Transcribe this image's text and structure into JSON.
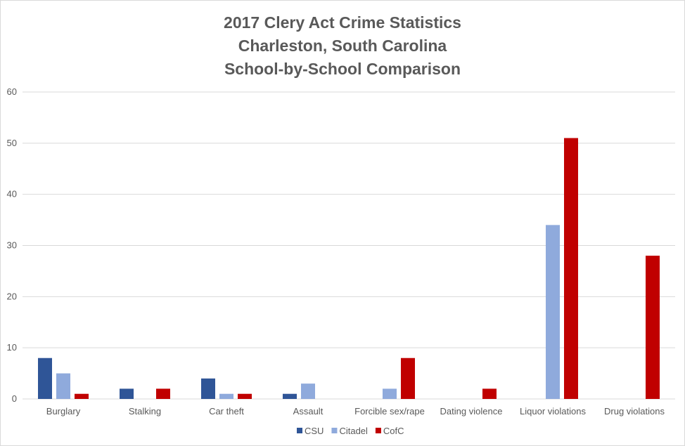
{
  "chart_data": {
    "type": "bar",
    "title": [
      "2017 Clery Act Crime Statistics",
      "Charleston, South Carolina",
      "School-by-School Comparison"
    ],
    "xlabel": "",
    "ylabel": "",
    "ylim": [
      0,
      60
    ],
    "yticks": [
      "0",
      "10",
      "20",
      "30",
      "40",
      "50",
      "60"
    ],
    "grid": true,
    "legend": "bottom",
    "categories": [
      "Burglary",
      "Stalking",
      "Car theft",
      "Assault",
      "Forcible sex/rape",
      "Dating violence",
      "Liquor violations",
      "Drug violations"
    ],
    "series": [
      {
        "name": "CSU",
        "color": "#2F5597",
        "values": [
          8,
          2,
          4,
          1,
          0,
          0,
          0,
          0
        ]
      },
      {
        "name": "Citadel",
        "color": "#8FAADC",
        "values": [
          5,
          0,
          1,
          3,
          2,
          0,
          34,
          0
        ]
      },
      {
        "name": "CofC",
        "color": "#C00000",
        "values": [
          1,
          2,
          1,
          0,
          8,
          2,
          51,
          28
        ]
      }
    ]
  }
}
